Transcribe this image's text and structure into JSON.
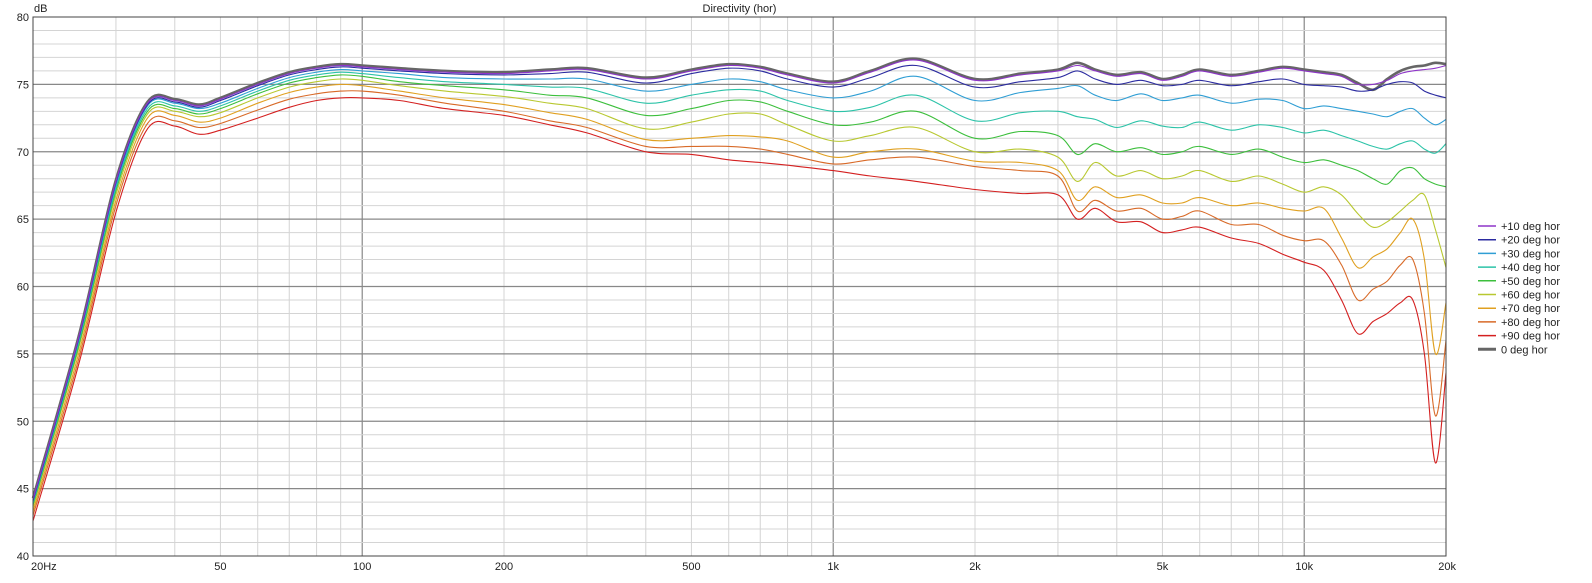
{
  "chart_data": {
    "type": "line",
    "title": "Directivity (hor)",
    "ylabel": "dB",
    "xscale": "log",
    "xlim": [
      20,
      20000
    ],
    "ylim": [
      40,
      80
    ],
    "yticks": [
      40,
      45,
      50,
      55,
      60,
      65,
      70,
      75,
      80
    ],
    "xticks": [
      {
        "v": 20,
        "label": "20Hz"
      },
      {
        "v": 50,
        "label": "50"
      },
      {
        "v": 100,
        "label": "100"
      },
      {
        "v": 200,
        "label": "200"
      },
      {
        "v": 500,
        "label": "500"
      },
      {
        "v": 1000,
        "label": "1k"
      },
      {
        "v": 2000,
        "label": "2k"
      },
      {
        "v": 5000,
        "label": "5k"
      },
      {
        "v": 10000,
        "label": "10k"
      },
      {
        "v": 20000,
        "label": "20k"
      }
    ],
    "grid": true,
    "legend_position": "right",
    "x": [
      20,
      25,
      30,
      35,
      40,
      45,
      50,
      60,
      70,
      80,
      90,
      100,
      120,
      150,
      200,
      250,
      300,
      400,
      500,
      600,
      700,
      800,
      1000,
      1200,
      1500,
      2000,
      2500,
      3000,
      3300,
      3600,
      4000,
      4500,
      5000,
      5500,
      6000,
      7000,
      8000,
      9000,
      10000,
      11000,
      12000,
      13000,
      14000,
      15000,
      16000,
      17000,
      18000,
      19000,
      20000
    ],
    "series": [
      {
        "name": "+10 deg hor",
        "color": "#8e35c8",
        "values": [
          44.2,
          56.2,
          67.8,
          73.6,
          73.8,
          73.4,
          73.9,
          75.0,
          75.8,
          76.2,
          76.4,
          76.3,
          76.1,
          75.9,
          75.8,
          76.0,
          76.1,
          75.4,
          76.0,
          76.4,
          76.2,
          75.7,
          75.1,
          75.9,
          76.8,
          75.3,
          75.7,
          76.0,
          76.4,
          76.0,
          75.6,
          75.8,
          75.3,
          75.6,
          76.0,
          75.6,
          75.9,
          76.2,
          76.0,
          75.8,
          75.6,
          75.0,
          75.0,
          75.3,
          75.8,
          76.0,
          76.1,
          76.2,
          76.4
        ]
      },
      {
        "name": "+20 deg hor",
        "color": "#2b2ba0",
        "values": [
          44.1,
          56.1,
          67.7,
          73.5,
          73.7,
          73.3,
          73.8,
          74.9,
          75.7,
          76.1,
          76.3,
          76.2,
          76.0,
          75.8,
          75.7,
          75.8,
          75.9,
          75.1,
          75.8,
          76.2,
          76.0,
          75.4,
          74.8,
          75.5,
          76.4,
          74.8,
          75.2,
          75.5,
          76.0,
          75.4,
          75.0,
          75.3,
          74.9,
          75.0,
          75.3,
          74.9,
          75.2,
          75.4,
          75.0,
          74.9,
          74.8,
          74.5,
          74.6,
          75.0,
          75.2,
          75.1,
          74.5,
          74.2,
          74.0
        ]
      },
      {
        "name": "+30 deg hor",
        "color": "#2f9ed4",
        "values": [
          44.0,
          56.0,
          67.5,
          73.4,
          73.6,
          73.2,
          73.6,
          74.7,
          75.5,
          75.9,
          76.1,
          76.0,
          75.8,
          75.5,
          75.4,
          75.4,
          75.4,
          74.5,
          75.0,
          75.4,
          75.2,
          74.6,
          74.0,
          74.5,
          75.6,
          73.8,
          74.4,
          74.7,
          74.9,
          74.2,
          73.8,
          74.3,
          73.8,
          74.0,
          74.2,
          73.6,
          73.9,
          73.8,
          73.2,
          73.4,
          73.2,
          73.0,
          72.8,
          72.6,
          73.0,
          73.2,
          72.5,
          72.0,
          72.4
        ]
      },
      {
        "name": "+40 deg hor",
        "color": "#2cc3a8",
        "values": [
          43.9,
          55.8,
          67.3,
          73.2,
          73.4,
          73.0,
          73.4,
          74.5,
          75.3,
          75.7,
          75.9,
          75.8,
          75.5,
          75.2,
          75.0,
          74.8,
          74.7,
          73.6,
          74.2,
          74.6,
          74.5,
          73.8,
          73.0,
          73.3,
          74.2,
          72.3,
          72.9,
          73.0,
          72.6,
          72.4,
          71.8,
          72.3,
          71.9,
          71.8,
          72.2,
          71.6,
          72.0,
          71.8,
          71.4,
          71.6,
          71.2,
          70.8,
          70.4,
          70.2,
          70.6,
          70.8,
          70.2,
          69.9,
          70.6
        ]
      },
      {
        "name": "+50 deg hor",
        "color": "#3cbf3c",
        "values": [
          43.8,
          55.6,
          67.1,
          73.0,
          73.2,
          72.8,
          73.2,
          74.3,
          75.1,
          75.5,
          75.7,
          75.6,
          75.2,
          74.9,
          74.6,
          74.2,
          74.0,
          72.7,
          73.2,
          73.8,
          73.7,
          73.0,
          72.0,
          72.2,
          73.0,
          71.0,
          71.5,
          71.2,
          69.8,
          70.6,
          70.0,
          70.3,
          69.8,
          70.0,
          70.4,
          69.8,
          70.2,
          69.6,
          69.2,
          69.4,
          69.0,
          68.6,
          68.0,
          67.6,
          68.6,
          68.8,
          68.0,
          67.6,
          67.4
        ]
      },
      {
        "name": "+60 deg hor",
        "color": "#b8c830",
        "values": [
          43.6,
          55.4,
          66.8,
          72.8,
          73.0,
          72.6,
          72.9,
          74.0,
          74.8,
          75.2,
          75.4,
          75.3,
          74.9,
          74.5,
          74.1,
          73.6,
          73.2,
          71.7,
          72.2,
          72.8,
          72.8,
          72.0,
          70.8,
          71.2,
          71.8,
          70.0,
          70.2,
          69.6,
          67.8,
          69.2,
          68.2,
          68.6,
          68.0,
          68.2,
          68.6,
          67.8,
          68.2,
          67.6,
          67.0,
          67.4,
          66.8,
          65.4,
          64.4,
          64.8,
          65.6,
          66.4,
          66.8,
          64.2,
          61.4
        ]
      },
      {
        "name": "+70 deg hor",
        "color": "#e0a020",
        "values": [
          43.3,
          55.0,
          66.4,
          72.5,
          72.7,
          72.2,
          72.5,
          73.6,
          74.4,
          74.8,
          75.0,
          74.9,
          74.5,
          74.0,
          73.5,
          72.9,
          72.4,
          70.9,
          71.0,
          71.2,
          71.1,
          70.8,
          69.6,
          70.0,
          70.2,
          69.3,
          69.2,
          68.6,
          66.4,
          67.4,
          66.6,
          66.8,
          66.2,
          66.2,
          66.6,
          66.0,
          66.2,
          65.8,
          65.6,
          65.8,
          63.6,
          61.4,
          62.2,
          62.8,
          64.0,
          65.0,
          62.0,
          55.0,
          58.8
        ]
      },
      {
        "name": "+80 deg hor",
        "color": "#d86a28",
        "values": [
          43.0,
          54.6,
          66.0,
          72.1,
          72.3,
          71.8,
          72.1,
          73.1,
          73.9,
          74.3,
          74.5,
          74.5,
          74.2,
          73.6,
          73.0,
          72.3,
          71.8,
          70.4,
          70.4,
          70.4,
          70.2,
          69.8,
          69.1,
          69.4,
          69.6,
          68.9,
          68.6,
          68.2,
          65.6,
          66.4,
          65.6,
          65.8,
          65.0,
          65.2,
          65.6,
          64.6,
          64.6,
          63.8,
          63.4,
          63.4,
          61.6,
          59.0,
          59.8,
          60.4,
          61.6,
          62.0,
          58.0,
          50.4,
          56.0
        ]
      },
      {
        "name": "+90 deg hor",
        "color": "#d42020",
        "values": [
          42.6,
          54.2,
          65.5,
          71.7,
          71.9,
          71.3,
          71.6,
          72.5,
          73.3,
          73.8,
          74.0,
          74.0,
          73.8,
          73.2,
          72.7,
          72.0,
          71.4,
          70.0,
          69.8,
          69.4,
          69.2,
          69.0,
          68.6,
          68.2,
          67.8,
          67.2,
          66.9,
          66.8,
          65.0,
          65.8,
          64.8,
          64.8,
          64.0,
          64.2,
          64.4,
          63.6,
          63.2,
          62.4,
          61.8,
          61.2,
          59.0,
          56.5,
          57.4,
          58.0,
          58.8,
          59.0,
          55.0,
          46.9,
          53.6
        ]
      },
      {
        "name": "0 deg hor",
        "color": "#666666",
        "thick": true,
        "values": [
          44.3,
          56.3,
          67.9,
          73.7,
          73.9,
          73.5,
          74.0,
          75.1,
          75.9,
          76.3,
          76.5,
          76.4,
          76.2,
          76.0,
          75.9,
          76.1,
          76.2,
          75.5,
          76.1,
          76.5,
          76.3,
          75.8,
          75.2,
          76.0,
          76.9,
          75.4,
          75.8,
          76.1,
          76.6,
          76.1,
          75.7,
          75.9,
          75.4,
          75.7,
          76.1,
          75.7,
          76.0,
          76.3,
          76.1,
          75.9,
          75.7,
          75.1,
          74.6,
          75.4,
          76.0,
          76.3,
          76.4,
          76.6,
          76.5
        ]
      }
    ]
  }
}
